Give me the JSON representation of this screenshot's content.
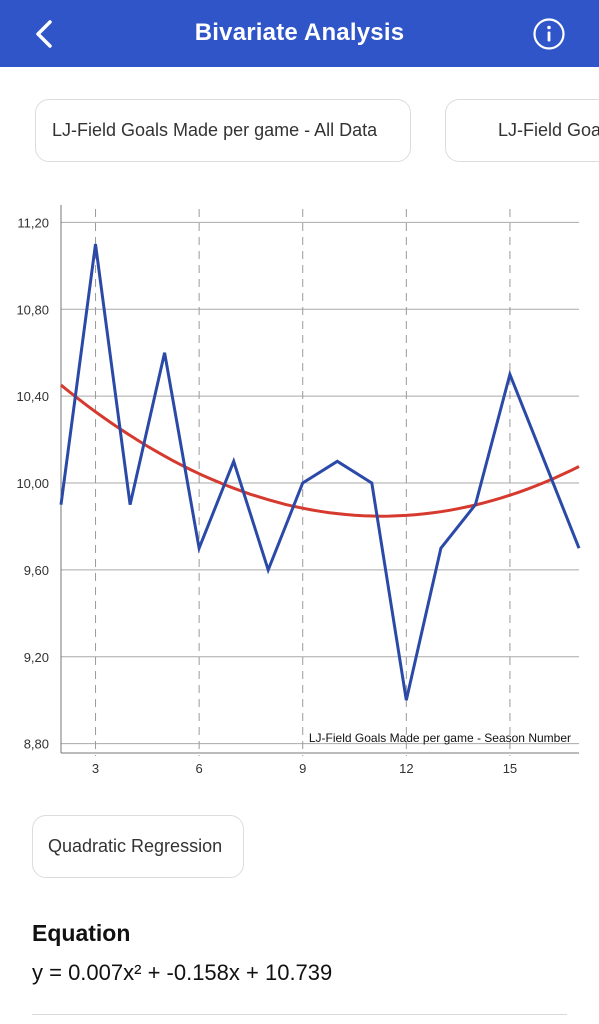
{
  "header": {
    "title": "Bivariate Analysis",
    "back_icon": "chevron-left-icon",
    "info_icon": "info-icon"
  },
  "selectors": {
    "y_variable": "LJ-Field Goals Made per game - All Data",
    "x_variable": "LJ-Field Goals Made per game - Season Number"
  },
  "chart_data": {
    "type": "line",
    "x_ticks": [
      "3",
      "6",
      "9",
      "12",
      "15"
    ],
    "y_ticks": [
      "8,80",
      "9,20",
      "9,60",
      "10,00",
      "10,40",
      "10,80",
      "11,20"
    ],
    "xlim": [
      2,
      17
    ],
    "ylim": [
      8.78,
      11.28
    ],
    "xlabel": "LJ-Field Goals Made per game - Season Number",
    "grid": true,
    "series": [
      {
        "color": "#2b4aa8",
        "x": [
          2,
          3,
          4,
          5,
          6,
          7,
          8,
          9,
          10,
          11,
          12,
          13,
          14,
          15,
          16,
          17
        ],
        "y": [
          9.9,
          11.1,
          9.9,
          10.6,
          9.7,
          10.1,
          9.6,
          10.0,
          10.1,
          10.0,
          9.0,
          9.7,
          9.9,
          10.5,
          10.1,
          9.7
        ]
      }
    ],
    "regression": {
      "color": "#d63a2e",
      "a": 0.007,
      "b": -0.158,
      "c": 10.739,
      "x_range": [
        2,
        17
      ]
    }
  },
  "regression_type": "Quadratic Regression",
  "equation": {
    "title": "Equation",
    "text": "y = 0.007x² + -0.158x + 10.739"
  }
}
